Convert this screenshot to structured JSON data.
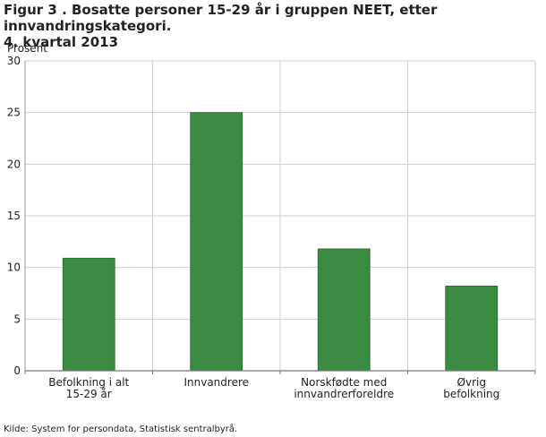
{
  "title_line1": "Figur 3 . Bosatte personer 15-29 år i gruppen NEET, etter innvandringskategori.",
  "title_line2": "4. kvartal 2013",
  "source": "Kilde: System for persondata, Statistisk sentralbyrå.",
  "colors": {
    "bar": "#3b8a41",
    "bar_edge": "#2a6a30",
    "grid": "#cfcfcf",
    "axis": "#999999"
  },
  "chart_data": {
    "type": "bar",
    "title": "Figur 3 . Bosatte personer 15-29 år i gruppen NEET, etter innvandringskategori. 4. kvartal 2013",
    "ylabel": "Prosent",
    "xlabel": "",
    "ylim": [
      0,
      30
    ],
    "yticks": [
      0,
      5,
      10,
      15,
      20,
      25,
      30
    ],
    "grid": true,
    "categories": [
      [
        "Befolkning i alt",
        "15-29 år"
      ],
      [
        "Innvandrere"
      ],
      [
        "Norskfødte med",
        "innvandrerforeldre"
      ],
      [
        "Øvrig",
        "befolkning"
      ]
    ],
    "values": [
      10.9,
      25.0,
      11.8,
      8.2
    ]
  }
}
